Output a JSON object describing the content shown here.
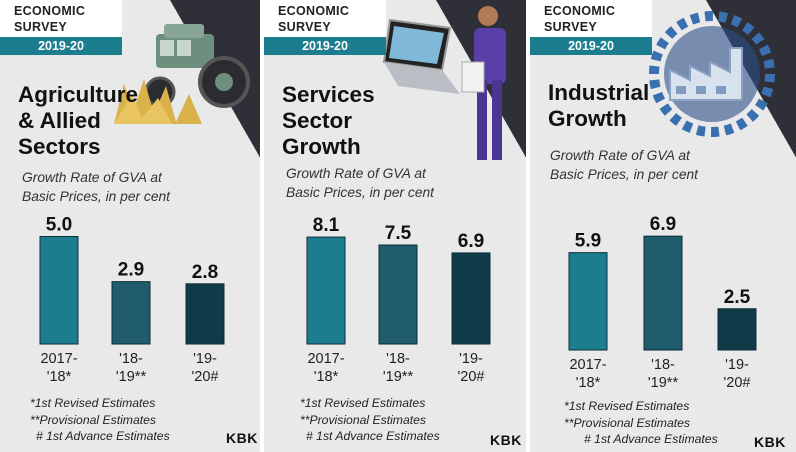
{
  "colors": {
    "teal": "#1c7d8e",
    "mid": "#1f5c6c",
    "dark": "#0f3b49",
    "badge_year_bg": "#1c7d8e",
    "panel_bg": "#e9e9ea"
  },
  "badge": {
    "line1": "ECONOMIC",
    "line2": "SURVEY",
    "year": "2019-20"
  },
  "brand": "KBK",
  "chart_data": [
    {
      "type": "bar",
      "title": "Agriculture\n& Allied\nSectors",
      "subtitle": "Growth Rate of GVA at\nBasic Prices, in per cent",
      "categories": [
        "2017-\n'18*",
        "'18-\n'19**",
        "'19-\n'20#"
      ],
      "values": [
        5.0,
        2.9,
        2.8
      ],
      "value_labels": [
        "5.0",
        "2.9",
        "2.8"
      ],
      "notes": [
        "*1st Revised Estimates",
        "**Provisional Estimates",
        "# 1st Advance Estimates"
      ]
    },
    {
      "type": "bar",
      "title": "Services\nSector\nGrowth",
      "subtitle": "Growth Rate of GVA at\nBasic Prices, in per cent",
      "categories": [
        "2017-\n'18*",
        "'18-\n'19**",
        "'19-\n'20#"
      ],
      "values": [
        8.1,
        7.5,
        6.9
      ],
      "value_labels": [
        "8.1",
        "7.5",
        "6.9"
      ],
      "notes": [
        "*1st Revised Estimates",
        "**Provisional Estimates",
        "# 1st Advance Estimates"
      ]
    },
    {
      "type": "bar",
      "title": "Industrial\nGrowth",
      "subtitle": "Growth Rate of GVA at\nBasic Prices, in per cent",
      "categories": [
        "2017-\n'18*",
        "'18-\n'19**",
        "'19-\n'20#"
      ],
      "values": [
        5.9,
        6.9,
        2.5
      ],
      "value_labels": [
        "5.9",
        "6.9",
        "2.5"
      ],
      "notes": [
        "*1st Revised Estimates",
        "**Provisional Estimates",
        "# 1st Advance Estimates"
      ]
    }
  ]
}
